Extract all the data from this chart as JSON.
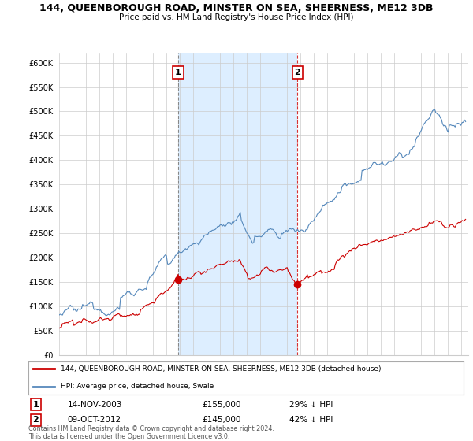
{
  "title": "144, QUEENBOROUGH ROAD, MINSTER ON SEA, SHEERNESS, ME12 3DB",
  "subtitle": "Price paid vs. HM Land Registry's House Price Index (HPI)",
  "ylim": [
    0,
    620000
  ],
  "yticks": [
    0,
    50000,
    100000,
    150000,
    200000,
    250000,
    300000,
    350000,
    400000,
    450000,
    500000,
    550000,
    600000
  ],
  "sale1_date_num": 2003.87,
  "sale1_price": 155000,
  "sale1_label": "1",
  "sale2_date_num": 2012.77,
  "sale2_price": 145000,
  "sale2_label": "2",
  "red_color": "#cc0000",
  "blue_color": "#5588bb",
  "shade_color": "#ddeeff",
  "legend1": "144, QUEENBOROUGH ROAD, MINSTER ON SEA, SHEERNESS, ME12 3DB (detached house)",
  "legend2": "HPI: Average price, detached house, Swale",
  "footer": "Contains HM Land Registry data © Crown copyright and database right 2024.\nThis data is licensed under the Open Government Licence v3.0.",
  "xstart": 1995.0,
  "xend": 2025.5
}
